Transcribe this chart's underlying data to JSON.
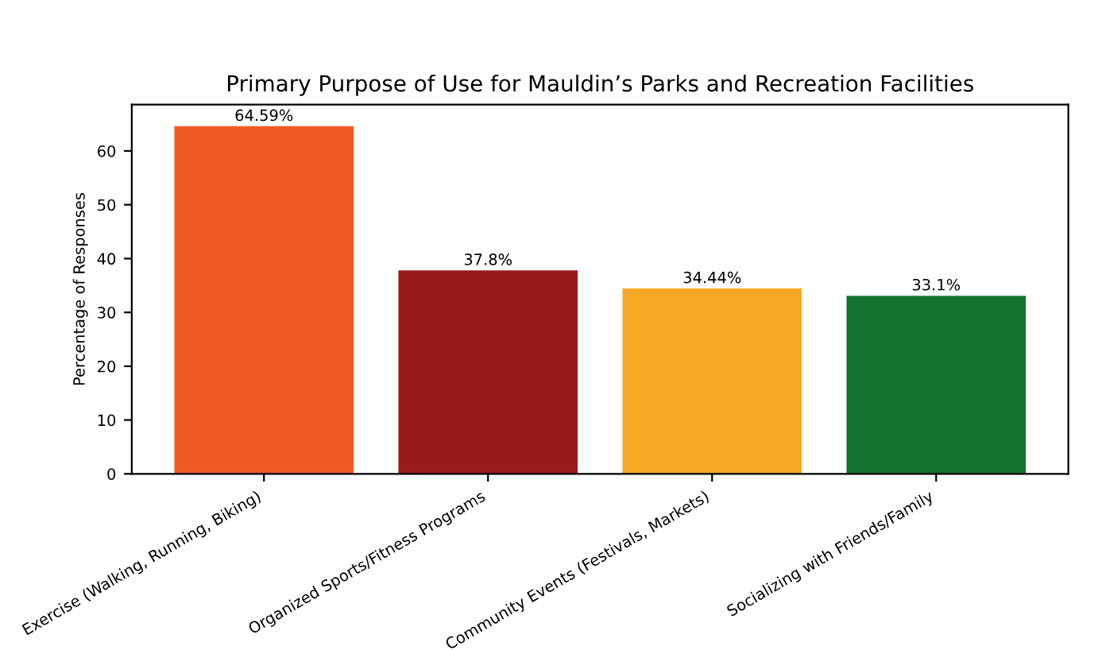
{
  "chart_data": {
    "type": "bar",
    "title": "Primary Purpose of Use for Mauldin’s Parks and Recreation Facilities",
    "ylabel": "Percentage of Responses",
    "categories": [
      "Exercise (Walking, Running, Biking)",
      "Organized Sports/Fitness Programs",
      "Community Events (Festivals, Markets)",
      "Socializing with Friends/Family"
    ],
    "values": [
      64.59,
      37.8,
      34.44,
      33.1
    ],
    "colors": [
      "#f15a24",
      "#9b1b1b",
      "#f9a825",
      "#14732f"
    ],
    "value_labels": [
      "64.59%",
      "37.8%",
      "34.44%",
      "33.1%"
    ],
    "ylim": [
      0,
      68.6
    ],
    "yticks": [
      0,
      10,
      20,
      30,
      40,
      50,
      60
    ],
    "grid": false,
    "legend": false
  }
}
